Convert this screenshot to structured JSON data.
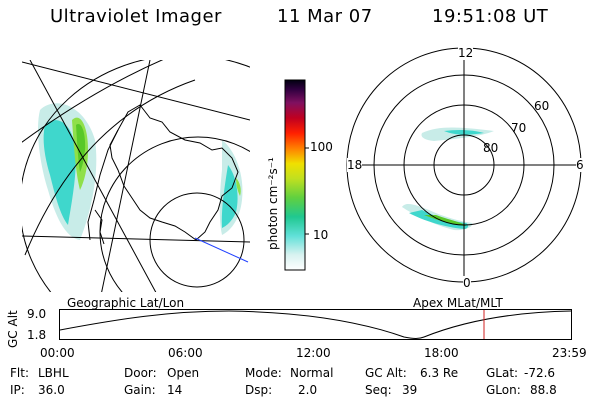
{
  "header": {
    "instrument": "Ultraviolet Imager",
    "date": "11 Mar 07",
    "time": "19:51:08 UT"
  },
  "colorbar": {
    "axis_label": "photon cm⁻²s⁻¹",
    "ticks": [
      "100",
      "10"
    ]
  },
  "polar_plot": {
    "mlt_labels": {
      "top": "12",
      "left": "18",
      "right": "6",
      "bottom": "0"
    },
    "lat_labels": [
      "60",
      "70",
      "80"
    ]
  },
  "map_labels": {
    "left": "Geographic Lat/Lon",
    "right": "Apex MLat/MLT"
  },
  "timeline": {
    "ylabel": "GC Alt",
    "yticks": [
      "9.0",
      "1.8"
    ],
    "xticks": [
      "00:00",
      "06:00",
      "12:00",
      "18:00",
      "23:59"
    ],
    "current_time": "19:51"
  },
  "status": {
    "filter_label": "Flt:",
    "filter_value": "LBHL",
    "door_label": "Door:",
    "door_value": "Open",
    "mode_label": "Mode:",
    "mode_value": "Normal",
    "gcalt_label": "GC Alt:",
    "gcalt_value": "6.3 Re",
    "glat_label": "GLat:",
    "glat_value": "-72.6",
    "ip_label": "IP:",
    "ip_value": "36.0",
    "gain_label": "Gain:",
    "gain_value": "14",
    "dsp_label": "Dsp:",
    "dsp_value": "2.0",
    "seq_label": "Seq:",
    "seq_value": "39",
    "glon_label": "GLon:",
    "glon_value": "88.8"
  }
}
